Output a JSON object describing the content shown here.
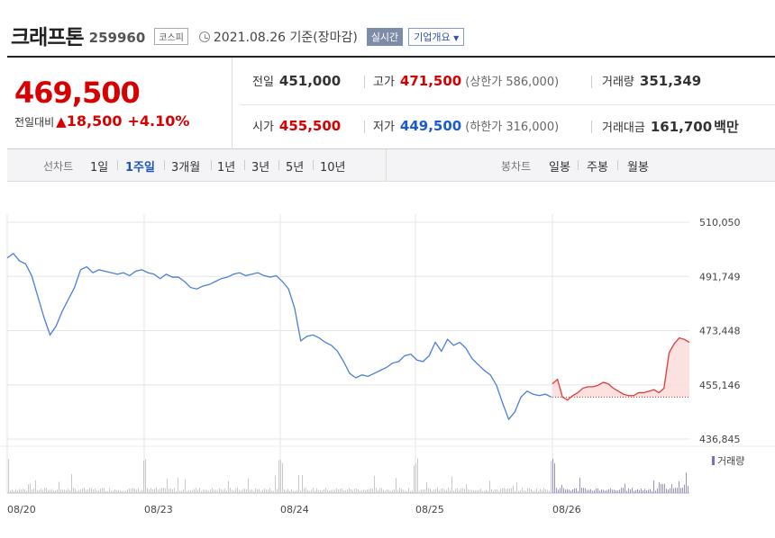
{
  "header": {
    "name": "크래프톤",
    "code": "259960",
    "market": "코스피",
    "date": "2021.08.26 기준(장마감)",
    "realtime": "실시간",
    "overview": "기업개요"
  },
  "price": {
    "current": "469,500",
    "change_label": "전일대비",
    "change_arrow": "▲",
    "change_value": "18,500",
    "change_pct": "+4.10%"
  },
  "stats": {
    "prev_label": "전일",
    "prev": "451,000",
    "high_label": "고가",
    "high": "471,500",
    "upper_limit": "(상한가 586,000)",
    "volume_label": "거래량",
    "volume": "351,349",
    "open_label": "시가",
    "open": "455,500",
    "low_label": "저가",
    "low": "449,500",
    "lower_limit": "(하한가 316,000)",
    "amount_label": "거래대금",
    "amount": "161,700",
    "amount_unit": "백만"
  },
  "tabs": {
    "line_label": "선차트",
    "periods": [
      "1일",
      "1주일",
      "3개월",
      "1년",
      "3년",
      "5년",
      "10년"
    ],
    "active_period": "1주일",
    "candle_label": "봉차트",
    "candles": [
      "일봉",
      "주봉",
      "월봉"
    ]
  },
  "colors": {
    "up": "#d60000",
    "down": "#1a5bd1",
    "line_blue": "#4a7fd4",
    "line_red": "#e03a3a",
    "volume": "#9a8fd0"
  },
  "chart_data": {
    "type": "line",
    "x_ticks": [
      "08/20",
      "08/23",
      "08/24",
      "08/25",
      "08/26"
    ],
    "y_ticks": [
      "510,050",
      "491,749",
      "473,448",
      "455,146",
      "436,845"
    ],
    "ylim": [
      436845,
      510050
    ],
    "volume_label": "거래량",
    "reference_price": 451000,
    "series": [
      {
        "segment": "previous days",
        "values": [
          498000,
          499500,
          497000,
          496000,
          492000,
          485000,
          478000,
          472000,
          475000,
          480000,
          484000,
          488000,
          494000,
          495000,
          493000,
          494000,
          493500,
          493000,
          492500,
          493000,
          492000,
          493500,
          494000,
          493000,
          492500,
          491000,
          492500,
          491500,
          491500,
          490000,
          488000,
          487500,
          488500,
          489000,
          490000,
          491000,
          491500,
          492500,
          493000,
          492000,
          492500,
          493000,
          492000,
          491500,
          492000,
          490000,
          487500,
          481000,
          470000,
          471500,
          472000,
          471000,
          469500,
          468500,
          466500,
          463000,
          459000,
          457500,
          458500,
          458000,
          459000,
          460000,
          461000,
          462500,
          463000,
          465000,
          465500,
          463500,
          463000,
          465000,
          469500,
          466500,
          470500,
          468500,
          469500,
          467500,
          464000,
          462000,
          460000,
          458500,
          455000,
          449000,
          443500,
          446000,
          451000,
          453000,
          452000,
          451500,
          452000,
          451000
        ]
      },
      {
        "segment": "2021.08.26",
        "values": [
          455500,
          457000,
          451000,
          450000,
          451500,
          452500,
          454000,
          454500,
          454500,
          455000,
          456000,
          455500,
          454000,
          453000,
          452000,
          451500,
          451500,
          452500,
          452500,
          453000,
          453500,
          452500,
          454000,
          466000,
          469000,
          471000,
          470500,
          469500
        ]
      }
    ]
  }
}
